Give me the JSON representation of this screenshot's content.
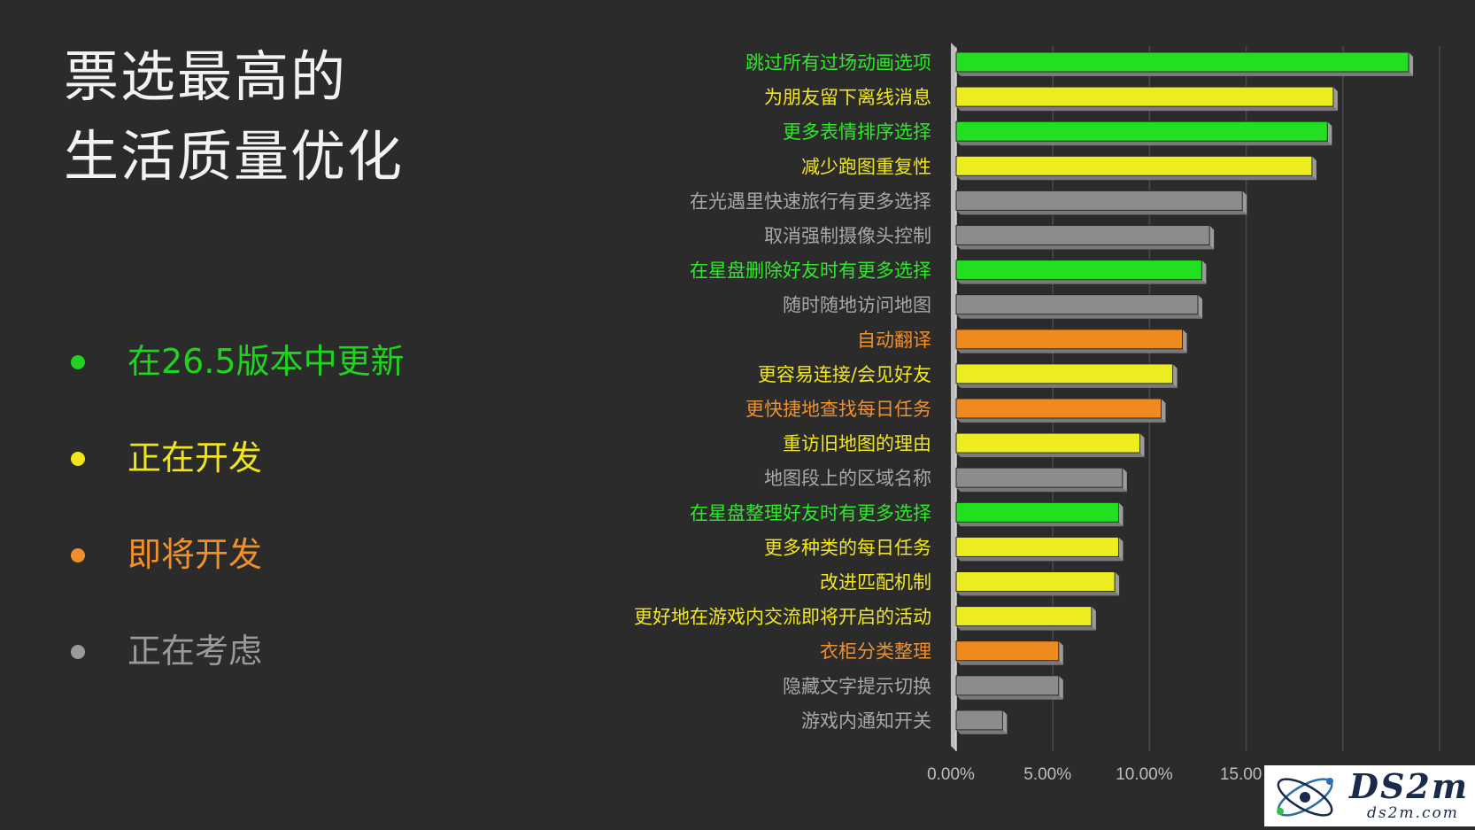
{
  "title": {
    "line1": "票选最高的",
    "line2": "生活质量优化"
  },
  "legend": [
    {
      "label": "在26.5版本中更新",
      "color": "#1fd31f"
    },
    {
      "label": "正在开发",
      "color": "#f0e51c"
    },
    {
      "label": "即将开发",
      "color": "#f0902a"
    },
    {
      "label": "正在考虑",
      "color": "#9a9a9a"
    }
  ],
  "status_colors": {
    "updated": {
      "bar": "#22e020",
      "label": "#2ee82a"
    },
    "developing": {
      "bar": "#ecec1e",
      "label": "#f2e622"
    },
    "upcoming": {
      "bar": "#ef8a1e",
      "label": "#f0902a"
    },
    "considering": {
      "bar": "#8c8c8c",
      "label": "#a8a8a8"
    }
  },
  "chart_data": {
    "type": "bar",
    "orientation": "horizontal",
    "categories": [
      "跳过所有过场动画选项",
      "为朋友留下离线消息",
      "更多表情排序选择",
      "减少跑图重复性",
      "在光遇里快速旅行有更多选择",
      "取消强制摄像头控制",
      "在星盘删除好友时有更多选择",
      "随时随地访问地图",
      "自动翻译",
      "更容易连接/会见好友",
      "更快捷地查找每日任务",
      "重访旧地图的理由",
      "地图段上的区域名称",
      "在星盘整理好友时有更多选择",
      "更多种类的每日任务",
      "改进匹配机制",
      "更好地在游戏内交流即将开启的活动",
      "衣柜分类整理",
      "隐藏文字提示切换",
      "游戏内通知开关"
    ],
    "values": [
      23.4,
      19.5,
      19.2,
      18.4,
      14.8,
      13.1,
      12.7,
      12.5,
      11.7,
      11.2,
      10.6,
      9.5,
      8.6,
      8.4,
      8.4,
      8.2,
      7.0,
      5.3,
      5.3,
      2.4
    ],
    "status": [
      "updated",
      "developing",
      "updated",
      "developing",
      "considering",
      "considering",
      "updated",
      "considering",
      "upcoming",
      "developing",
      "upcoming",
      "developing",
      "considering",
      "updated",
      "developing",
      "developing",
      "developing",
      "upcoming",
      "considering",
      "considering"
    ],
    "x_ticks": [
      "0.00%",
      "5.00%",
      "10.00%",
      "15.00"
    ],
    "xlim": [
      0,
      25
    ],
    "grid": true
  },
  "watermark": {
    "text": "DS2m",
    "sub": "ds2m.com"
  }
}
